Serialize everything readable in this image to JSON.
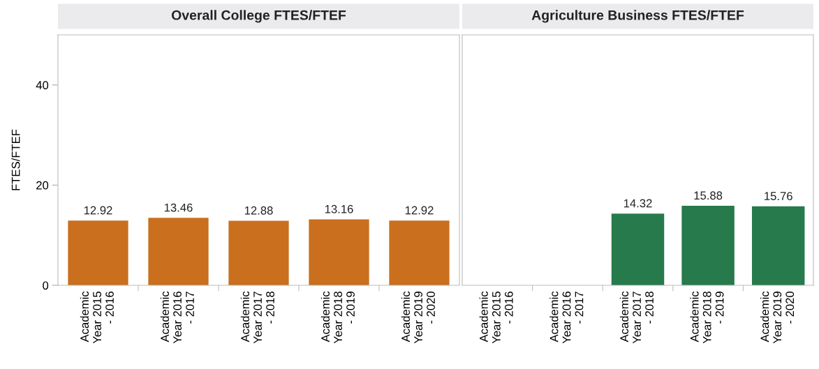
{
  "chart_data": [
    {
      "type": "bar",
      "title": "Overall College FTES/FTEF",
      "ylabel": "FTES/FTEF",
      "categories": [
        "Academic Year 2015 - 2016",
        "Academic Year 2016 - 2017",
        "Academic Year 2017 - 2018",
        "Academic Year 2018 - 2019",
        "Academic Year 2019 - 2020"
      ],
      "values": [
        12.92,
        13.46,
        12.88,
        13.16,
        12.92
      ],
      "color": "#c96f1e",
      "ylim": [
        0,
        50
      ],
      "yticks": [
        0,
        20,
        40
      ],
      "grid": false,
      "data_labels": true
    },
    {
      "type": "bar",
      "title": "Agriculture Business FTES/FTEF",
      "categories": [
        "Academic Year 2015 - 2016",
        "Academic Year 2016 - 2017",
        "Academic Year 2017 - 2018",
        "Academic Year 2018 - 2019",
        "Academic Year 2019 - 2020"
      ],
      "values": [
        null,
        null,
        14.32,
        15.88,
        15.76
      ],
      "color": "#267a4b",
      "ylim": [
        0,
        50
      ],
      "yticks": [
        0,
        20,
        40
      ],
      "grid": false,
      "data_labels": true,
      "tick_labels": "x"
    }
  ]
}
